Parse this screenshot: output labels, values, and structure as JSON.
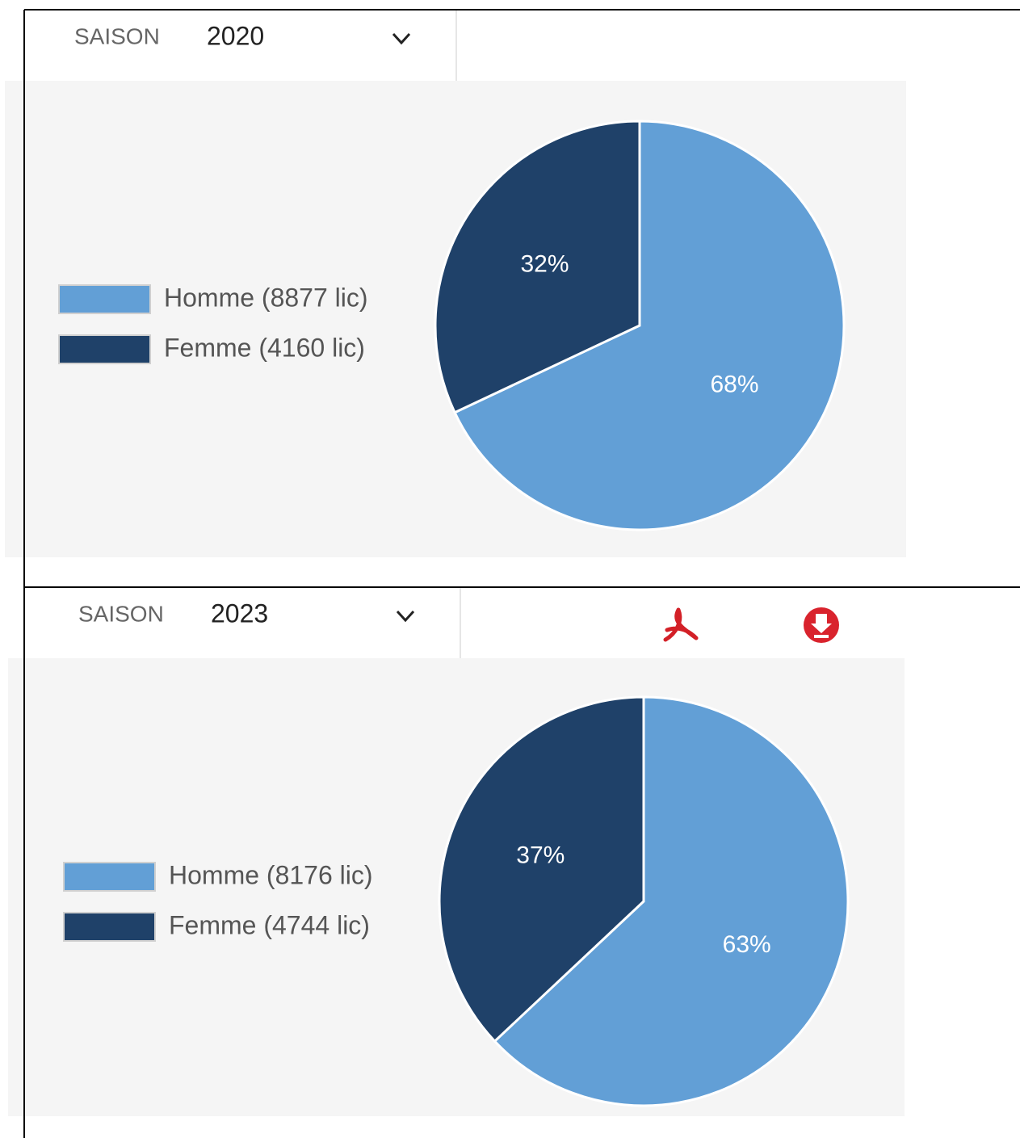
{
  "chart_data": [
    {
      "type": "pie",
      "season_label": "SAISON",
      "season": "2020",
      "categories": [
        "Homme (8877 lic)",
        "Femme (4160 lic)"
      ],
      "values": [
        68,
        32
      ],
      "value_labels": [
        "68%",
        "32%"
      ],
      "colors": [
        "#629fd6",
        "#1f4169"
      ]
    },
    {
      "type": "pie",
      "season_label": "SAISON",
      "season": "2023",
      "categories": [
        "Homme (8176 lic)",
        "Femme (4744 lic)"
      ],
      "values": [
        63,
        37
      ],
      "value_labels": [
        "63%",
        "37%"
      ],
      "colors": [
        "#629fd6",
        "#1f4169"
      ]
    }
  ]
}
